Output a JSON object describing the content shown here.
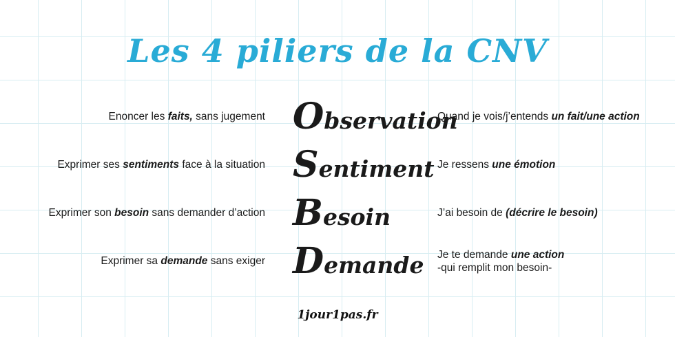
{
  "title": "Les 4 piliers de la CNV",
  "footer": "1jour1pas.fr",
  "colors": {
    "accent": "#29abd6",
    "grid": "#d7edf2",
    "text": "#1a1a1a"
  },
  "rows": [
    {
      "left_prefix": "Enoncer les ",
      "left_bold": "faits,",
      "left_suffix": " sans jugement",
      "pillar_initial": "O",
      "pillar_rest": "bservation",
      "right_prefix": "Quand je vois/j’entends ",
      "right_bold": "un fait/une action",
      "right_suffix": ""
    },
    {
      "left_prefix": "Exprimer ses ",
      "left_bold": "sentiments",
      "left_suffix": " face à la situation",
      "pillar_initial": "S",
      "pillar_rest": "entiment",
      "right_prefix": "Je ressens ",
      "right_bold": "une émotion",
      "right_suffix": ""
    },
    {
      "left_prefix": "Exprimer son ",
      "left_bold": "besoin",
      "left_suffix": " sans demander d’action",
      "pillar_initial": "B",
      "pillar_rest": "esoin",
      "right_prefix": "J’ai besoin de ",
      "right_bold": "(décrire le besoin)",
      "right_suffix": ""
    },
    {
      "left_prefix": "Exprimer sa ",
      "left_bold": "demande",
      "left_suffix": " sans exiger",
      "pillar_initial": "D",
      "pillar_rest": "emande",
      "right_prefix": "Je te demande ",
      "right_bold": "une action",
      "right_suffix": "",
      "right_line2": "-qui remplit mon besoin-"
    }
  ]
}
